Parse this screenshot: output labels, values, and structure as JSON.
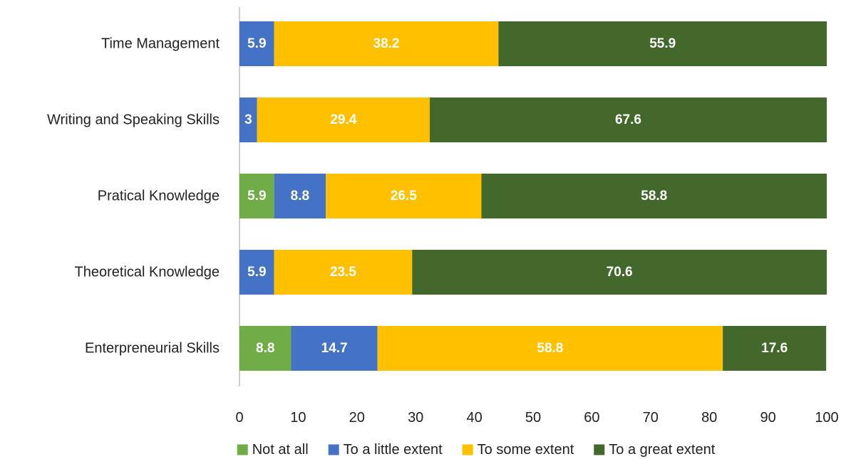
{
  "chart_data": {
    "type": "bar",
    "orientation": "horizontal",
    "stacked": true,
    "categories": [
      "Time Management",
      "Writing and Speaking Skills",
      "Pratical Knowledge",
      "Theoretical Knowledge",
      "Enterpreneurial Skills"
    ],
    "series": [
      {
        "name": "Not at all",
        "color": "#70AD47",
        "values": [
          0,
          0,
          5.9,
          0,
          8.8
        ]
      },
      {
        "name": "To a little extent",
        "color": "#4472C4",
        "values": [
          5.9,
          3,
          8.8,
          5.9,
          14.7
        ]
      },
      {
        "name": "To some extent",
        "color": "#FFC000",
        "values": [
          38.2,
          29.4,
          26.5,
          23.5,
          58.8
        ]
      },
      {
        "name": "To a great extent",
        "color": "#43682B",
        "values": [
          55.9,
          67.6,
          58.8,
          70.6,
          17.6
        ]
      }
    ],
    "xlim": [
      0,
      100
    ],
    "x_ticks": [
      0,
      10,
      20,
      30,
      40,
      50,
      60,
      70,
      80,
      90,
      100
    ],
    "title": "",
    "xlabel": "",
    "ylabel": "",
    "grid": false,
    "legend_position": "bottom"
  }
}
